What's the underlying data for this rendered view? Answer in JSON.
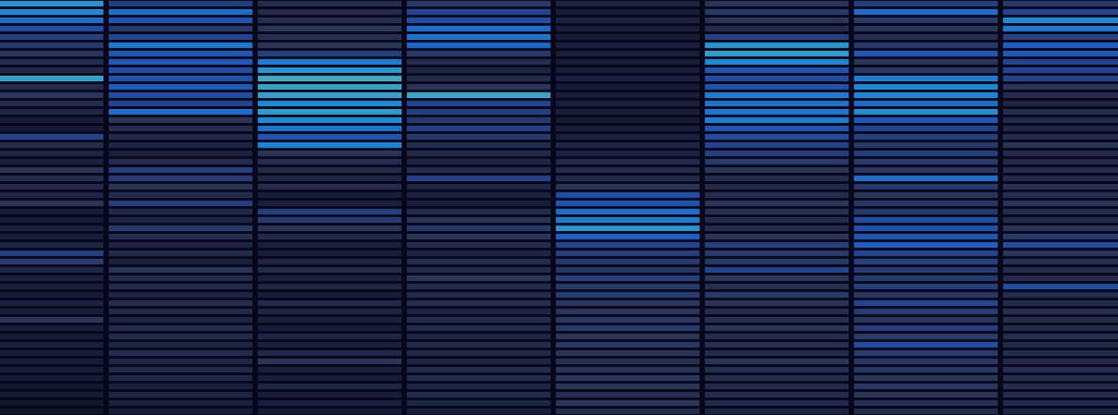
{
  "chart_data": {
    "type": "heatmap",
    "tick_labels": false,
    "zlim": [
      0,
      100
    ],
    "cells": [
      [
        85,
        45,
        30,
        40,
        25,
        35,
        45,
        40
      ],
      [
        80,
        70,
        28,
        50,
        20,
        40,
        70,
        50
      ],
      [
        70,
        60,
        30,
        55,
        22,
        35,
        40,
        80
      ],
      [
        55,
        40,
        35,
        70,
        20,
        30,
        35,
        75
      ],
      [
        45,
        50,
        32,
        72,
        18,
        45,
        30,
        45
      ],
      [
        40,
        75,
        35,
        68,
        22,
        85,
        40,
        65
      ],
      [
        35,
        60,
        45,
        40,
        20,
        88,
        60,
        62
      ],
      [
        30,
        62,
        75,
        30,
        18,
        80,
        35,
        50
      ],
      [
        28,
        55,
        85,
        25,
        20,
        60,
        40,
        52
      ],
      [
        90,
        58,
        95,
        28,
        22,
        55,
        75,
        48
      ],
      [
        30,
        62,
        92,
        35,
        18,
        58,
        80,
        35
      ],
      [
        35,
        55,
        90,
        92,
        20,
        75,
        78,
        30
      ],
      [
        30,
        50,
        80,
        50,
        22,
        72,
        70,
        25
      ],
      [
        25,
        70,
        88,
        45,
        20,
        74,
        82,
        30
      ],
      [
        20,
        35,
        80,
        40,
        18,
        76,
        60,
        28
      ],
      [
        18,
        30,
        72,
        48,
        20,
        60,
        50,
        25
      ],
      [
        50,
        28,
        60,
        40,
        22,
        55,
        45,
        30
      ],
      [
        30,
        25,
        78,
        30,
        25,
        50,
        40,
        35
      ],
      [
        25,
        22,
        35,
        28,
        24,
        45,
        45,
        30
      ],
      [
        22,
        30,
        30,
        25,
        28,
        40,
        40,
        28
      ],
      [
        35,
        45,
        28,
        30,
        30,
        35,
        38,
        30
      ],
      [
        30,
        42,
        25,
        48,
        28,
        30,
        70,
        28
      ],
      [
        28,
        35,
        30,
        25,
        35,
        28,
        40,
        32
      ],
      [
        25,
        30,
        20,
        22,
        55,
        30,
        35,
        30
      ],
      [
        35,
        45,
        22,
        20,
        60,
        35,
        38,
        35
      ],
      [
        20,
        28,
        45,
        30,
        70,
        32,
        40,
        30
      ],
      [
        18,
        25,
        40,
        35,
        75,
        30,
        55,
        28
      ],
      [
        22,
        40,
        35,
        40,
        85,
        30,
        58,
        35
      ],
      [
        20,
        30,
        28,
        35,
        65,
        35,
        60,
        40
      ],
      [
        25,
        25,
        22,
        30,
        50,
        45,
        65,
        55
      ],
      [
        45,
        28,
        20,
        25,
        45,
        40,
        50,
        35
      ],
      [
        42,
        22,
        25,
        30,
        40,
        38,
        45,
        32
      ],
      [
        25,
        35,
        28,
        28,
        38,
        50,
        42,
        30
      ],
      [
        22,
        30,
        22,
        35,
        45,
        35,
        40,
        28
      ],
      [
        20,
        28,
        25,
        30,
        40,
        32,
        45,
        55
      ],
      [
        18,
        25,
        20,
        28,
        42,
        40,
        38,
        30
      ],
      [
        22,
        30,
        28,
        32,
        38,
        35,
        50,
        28
      ],
      [
        20,
        28,
        25,
        25,
        35,
        30,
        42,
        32
      ],
      [
        35,
        25,
        22,
        30,
        38,
        32,
        35,
        30
      ],
      [
        20,
        30,
        20,
        28,
        40,
        35,
        45,
        28
      ],
      [
        18,
        28,
        25,
        25,
        35,
        30,
        40,
        30
      ],
      [
        22,
        25,
        22,
        30,
        38,
        32,
        55,
        28
      ],
      [
        20,
        30,
        28,
        28,
        35,
        30,
        42,
        30
      ],
      [
        18,
        25,
        35,
        25,
        32,
        35,
        38,
        28
      ],
      [
        20,
        28,
        22,
        30,
        35,
        32,
        40,
        32
      ],
      [
        18,
        25,
        20,
        28,
        38,
        30,
        35,
        30
      ],
      [
        15,
        22,
        25,
        25,
        35,
        28,
        38,
        28
      ],
      [
        18,
        25,
        20,
        28,
        32,
        30,
        35,
        30
      ],
      [
        15,
        22,
        22,
        25,
        35,
        28,
        32,
        28
      ],
      [
        12,
        20,
        18,
        22,
        30,
        25,
        30,
        25
      ]
    ]
  }
}
